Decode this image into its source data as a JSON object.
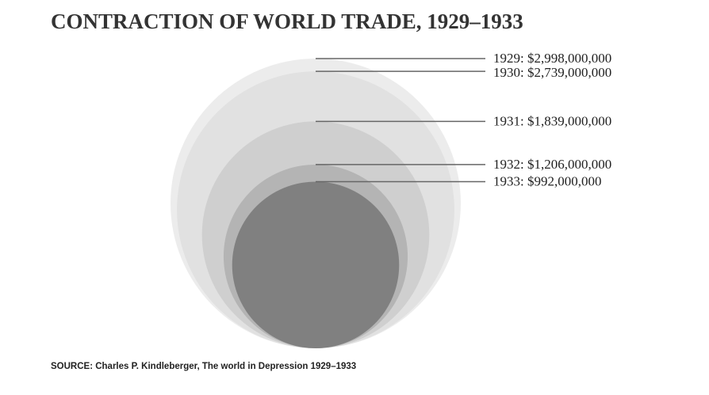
{
  "chart_data": {
    "type": "bubble",
    "title": "CONTRACTION OF WORLD TRADE, 1929–1933",
    "series": [
      {
        "year": "1929",
        "value": 2998000000,
        "label": "1929: $2,998,000,000",
        "color": "#ececec"
      },
      {
        "year": "1930",
        "value": 2739000000,
        "label": "1930: $2,739,000,000",
        "color": "#e1e1e1"
      },
      {
        "year": "1931",
        "value": 1839000000,
        "label": "1931: $1,839,000,000",
        "color": "#cfcfcf"
      },
      {
        "year": "1932",
        "value": 1206000000,
        "label": "1932: $1,206,000,000",
        "color": "#b4b4b4"
      },
      {
        "year": "1933",
        "value": 992000000,
        "label": "1933: $992,000,000",
        "color": "#808080"
      }
    ],
    "legend": "none",
    "grid": false
  },
  "source": "SOURCE: Charles P. Kindleberger, The world in Depression 1929–1933"
}
